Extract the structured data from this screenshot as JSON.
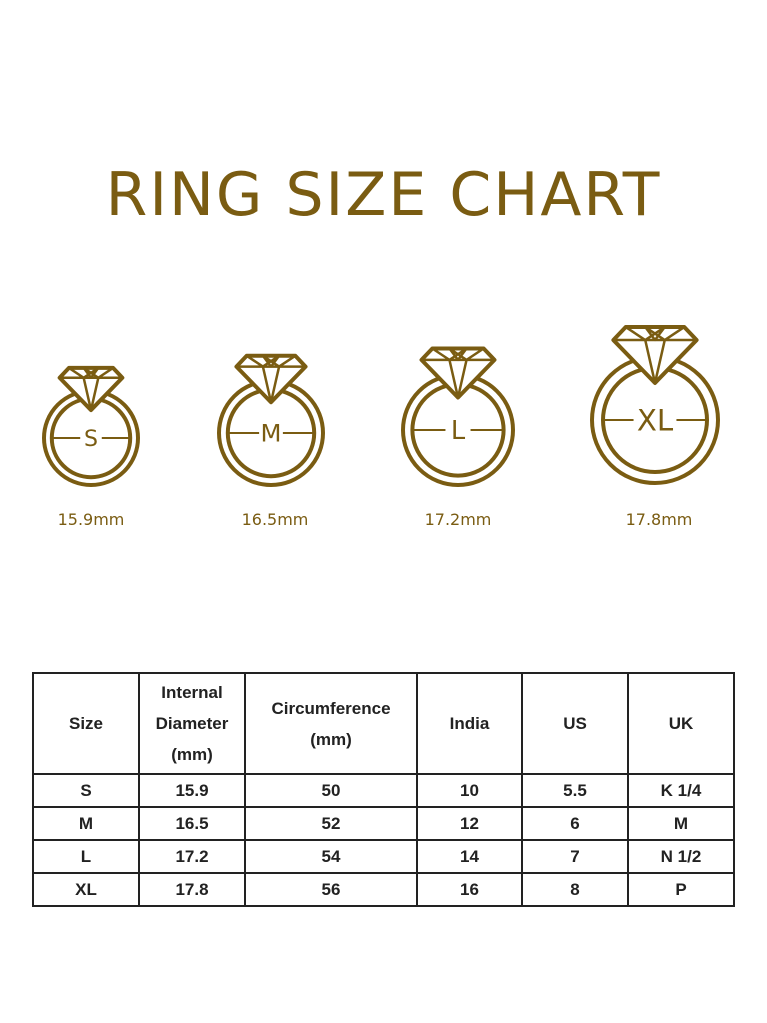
{
  "title": "RING SIZE CHART",
  "accent_color": "#7a5c12",
  "rings": [
    {
      "size": "S",
      "diameter_label": "15.9mm",
      "diameter_mm": 15.9
    },
    {
      "size": "M",
      "diameter_label": "16.5mm",
      "diameter_mm": 16.5
    },
    {
      "size": "L",
      "diameter_label": "17.2mm",
      "diameter_mm": 17.2
    },
    {
      "size": "XL",
      "diameter_label": "17.8mm",
      "diameter_mm": 17.8
    }
  ],
  "table": {
    "headers": [
      "Size",
      "Internal Diameter (mm)",
      "Circumference (mm)",
      "India",
      "US",
      "UK"
    ],
    "rows": [
      [
        "S",
        "15.9",
        "50",
        "10",
        "5.5",
        "K 1/4"
      ],
      [
        "M",
        "16.5",
        "52",
        "12",
        "6",
        "M"
      ],
      [
        "L",
        "17.2",
        "54",
        "14",
        "7",
        "N 1/2"
      ],
      [
        "XL",
        "17.8",
        "56",
        "16",
        "8",
        "P"
      ]
    ]
  }
}
